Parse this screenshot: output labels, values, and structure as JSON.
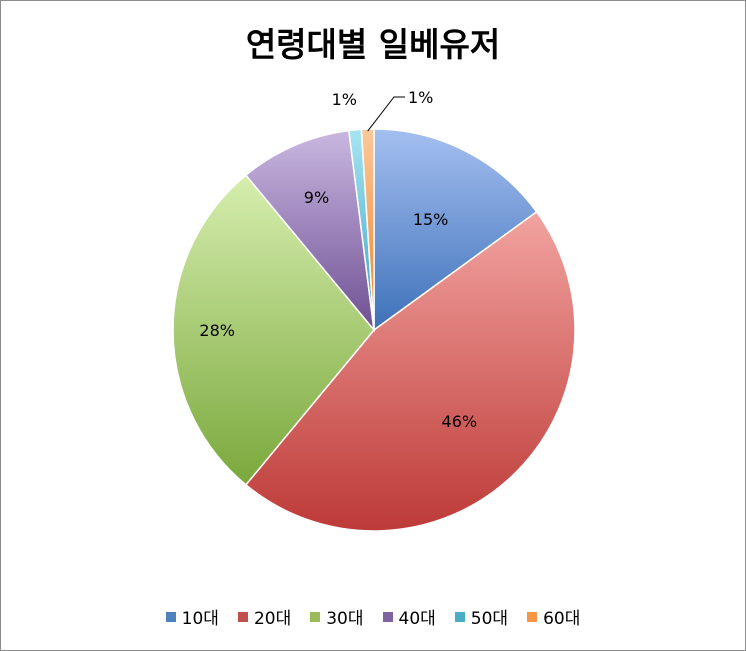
{
  "chart_data": {
    "type": "pie",
    "title": "연령대별 일베유저",
    "categories": [
      "10대",
      "20대",
      "30대",
      "40대",
      "50대",
      "60대"
    ],
    "values": [
      15,
      46,
      28,
      9,
      1,
      1
    ],
    "labels": [
      "15%",
      "46%",
      "28%",
      "9%",
      "1%",
      "1%"
    ],
    "colors": [
      "#4f81bd",
      "#c0504d",
      "#9bbb59",
      "#8064a2",
      "#4bacc6",
      "#f79646"
    ],
    "gradients": [
      [
        "#a4bff0",
        "#3e71b9"
      ],
      [
        "#f2a3a0",
        "#bd3a37"
      ],
      [
        "#d6eeae",
        "#7aa83c"
      ],
      [
        "#c9b7e0",
        "#6f5093"
      ],
      [
        "#a7e4f2",
        "#3ba3c2"
      ],
      [
        "#fbc99c",
        "#ee7f27"
      ]
    ],
    "legend_position": "bottom",
    "start_angle": "12 o'clock",
    "direction": "clockwise"
  }
}
